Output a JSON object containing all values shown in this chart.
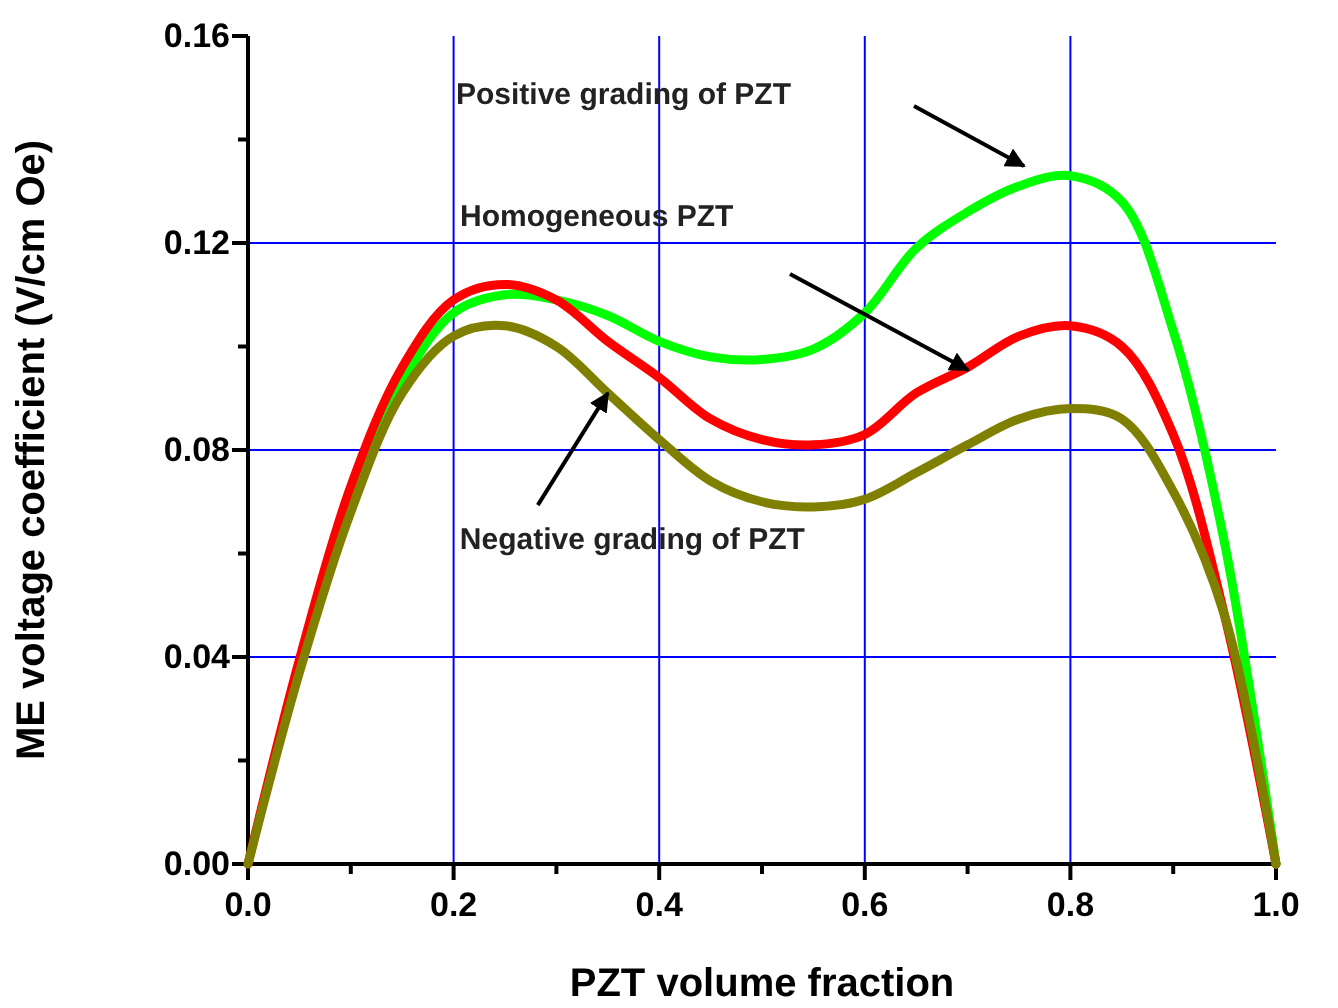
{
  "chart_data": {
    "type": "line",
    "xlabel": "PZT volume fraction",
    "ylabel": "ME voltage coefficient (V/cm Oe)",
    "x": [
      0,
      0.05,
      0.1,
      0.15,
      0.2,
      0.25,
      0.3,
      0.35,
      0.4,
      0.45,
      0.5,
      0.55,
      0.6,
      0.65,
      0.7,
      0.75,
      0.8,
      0.85,
      0.9,
      0.95,
      1.0
    ],
    "series": [
      {
        "color": "#00ff00",
        "values": [
          null,
          null,
          0.07,
          0.093,
          0.1065,
          0.11,
          0.109,
          0.106,
          0.101,
          0.098,
          0.0975,
          0.0995,
          0.1065,
          0.119,
          0.126,
          0.131,
          0.133,
          0.128,
          0.103,
          0.062,
          0
        ]
      },
      {
        "color": "#ff0000",
        "values": [
          0,
          0.0395,
          0.073,
          0.096,
          0.109,
          0.112,
          0.109,
          0.101,
          0.094,
          0.086,
          0.082,
          0.081,
          0.083,
          0.091,
          0.096,
          0.102,
          0.104,
          0.1,
          0.083,
          0.048,
          0
        ]
      },
      {
        "color": "#808000",
        "values": [
          0,
          0.037,
          0.068,
          0.091,
          0.102,
          0.104,
          0.1,
          0.091,
          0.082,
          0.074,
          0.07,
          0.069,
          0.0705,
          0.0756,
          0.081,
          0.086,
          0.088,
          0.086,
          0.072,
          0.048,
          0
        ]
      }
    ],
    "xlim": [
      0,
      1
    ],
    "ylim": [
      0,
      0.16
    ],
    "xticks": [
      {
        "value": 0,
        "label": "0.0"
      },
      {
        "value": 0.1,
        "label": null
      },
      {
        "value": 0.2,
        "label": "0.2"
      },
      {
        "value": 0.3,
        "label": null
      },
      {
        "value": 0.4,
        "label": "0.4"
      },
      {
        "value": 0.5,
        "label": null
      },
      {
        "value": 0.6,
        "label": "0.6"
      },
      {
        "value": 0.7,
        "label": null
      },
      {
        "value": 0.8,
        "label": "0.8"
      },
      {
        "value": 0.9,
        "label": null
      },
      {
        "value": 1,
        "label": "1.0"
      }
    ],
    "yticks": [
      {
        "value": 0,
        "label": "0.00"
      },
      {
        "value": 0.02,
        "label": null
      },
      {
        "value": 0.04,
        "label": "0.04"
      },
      {
        "value": 0.06,
        "label": null
      },
      {
        "value": 0.08,
        "label": "0.08"
      },
      {
        "value": 0.1,
        "label": null
      },
      {
        "value": 0.12,
        "label": "0.12"
      },
      {
        "value": 0.14,
        "label": null
      },
      {
        "value": 0.16,
        "label": "0.16"
      }
    ],
    "grid": true,
    "marker": "none",
    "line_style": "solid",
    "annotations": [
      "Positive grading of PZT",
      "Homogeneous PZT",
      {
        "text": "Negative grading of PZT",
        "x": 0.35,
        "y": 0.091
      }
    ]
  }
}
